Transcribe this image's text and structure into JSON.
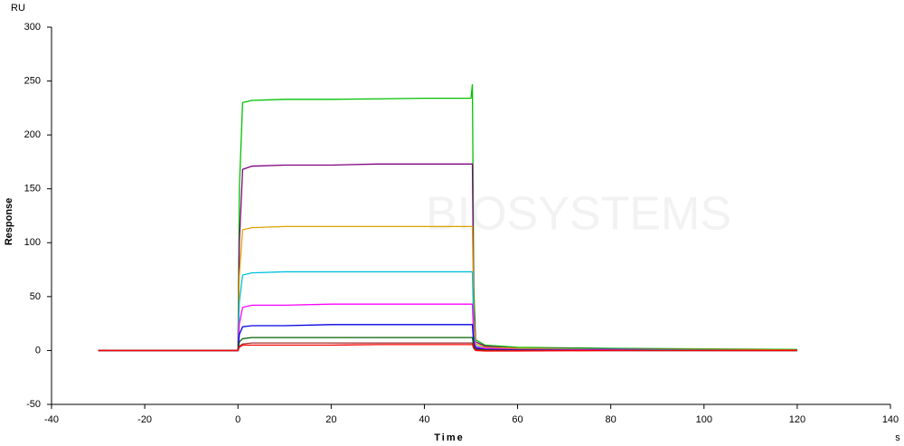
{
  "chart_data": {
    "type": "line",
    "watermark": "BIOSYSTEMS",
    "y_unit": "RU",
    "x_unit": "s",
    "y_label": "Response",
    "x_label": "Time",
    "x": [
      -30,
      -0.5,
      0,
      0.3,
      1,
      3,
      10,
      20,
      30,
      40,
      50,
      50.3,
      50.6,
      51,
      53,
      60,
      80,
      100,
      120
    ],
    "series": [
      {
        "color": "#00c000",
        "values": [
          0,
          0,
          0,
          150,
          230,
          232,
          233,
          233,
          233.5,
          234,
          234,
          247,
          60,
          10,
          5,
          3,
          2,
          1.5,
          1
        ]
      },
      {
        "color": "#800080",
        "values": [
          0,
          0,
          0,
          100,
          168,
          171,
          172,
          172,
          173,
          173,
          173,
          173,
          40,
          8,
          4,
          2,
          1.5,
          1,
          0.5
        ]
      },
      {
        "color": "#e0a000",
        "values": [
          0,
          0,
          0,
          70,
          112,
          114,
          115,
          115,
          115,
          115,
          115,
          115,
          30,
          6,
          3,
          2,
          1,
          1,
          0.5
        ]
      },
      {
        "color": "#00c0e0",
        "values": [
          0,
          0,
          0,
          45,
          70,
          72,
          73,
          73,
          73,
          73,
          73,
          73,
          15,
          4,
          2,
          1,
          1,
          0.5,
          0
        ]
      },
      {
        "color": "#ff00ff",
        "values": [
          0,
          0,
          0,
          25,
          40,
          42,
          42,
          43,
          43,
          43,
          43,
          43,
          10,
          3,
          2,
          1,
          0.5,
          0,
          0
        ]
      },
      {
        "color": "#0000e0",
        "values": [
          0,
          0,
          0,
          15,
          22,
          23,
          23,
          24,
          24,
          24,
          24,
          24,
          6,
          2,
          1,
          0.5,
          0,
          0,
          0
        ]
      },
      {
        "color": "#006000",
        "values": [
          0,
          0,
          0,
          8,
          11,
          12,
          12,
          12,
          12,
          12,
          12,
          12,
          4,
          1,
          0.5,
          0,
          0,
          0,
          0
        ]
      },
      {
        "color": "#a03030",
        "values": [
          0,
          0,
          0,
          4,
          6,
          7,
          7,
          7,
          7,
          7,
          7,
          7,
          2,
          0.5,
          0,
          0,
          0,
          0,
          0
        ]
      },
      {
        "color": "#ff0000",
        "values": [
          0,
          0,
          0,
          3,
          5,
          5,
          5,
          5,
          5.5,
          5.5,
          5.5,
          5.5,
          2,
          0,
          -0.5,
          -0.5,
          0,
          0,
          0
        ]
      }
    ],
    "xlim": [
      -40,
      140
    ],
    "xticks": [
      -40,
      -20,
      0,
      20,
      40,
      60,
      80,
      100,
      120,
      140
    ],
    "ylim": [
      -50,
      300
    ],
    "yticks": [
      -50,
      0,
      50,
      100,
      150,
      200,
      250,
      300
    ]
  }
}
